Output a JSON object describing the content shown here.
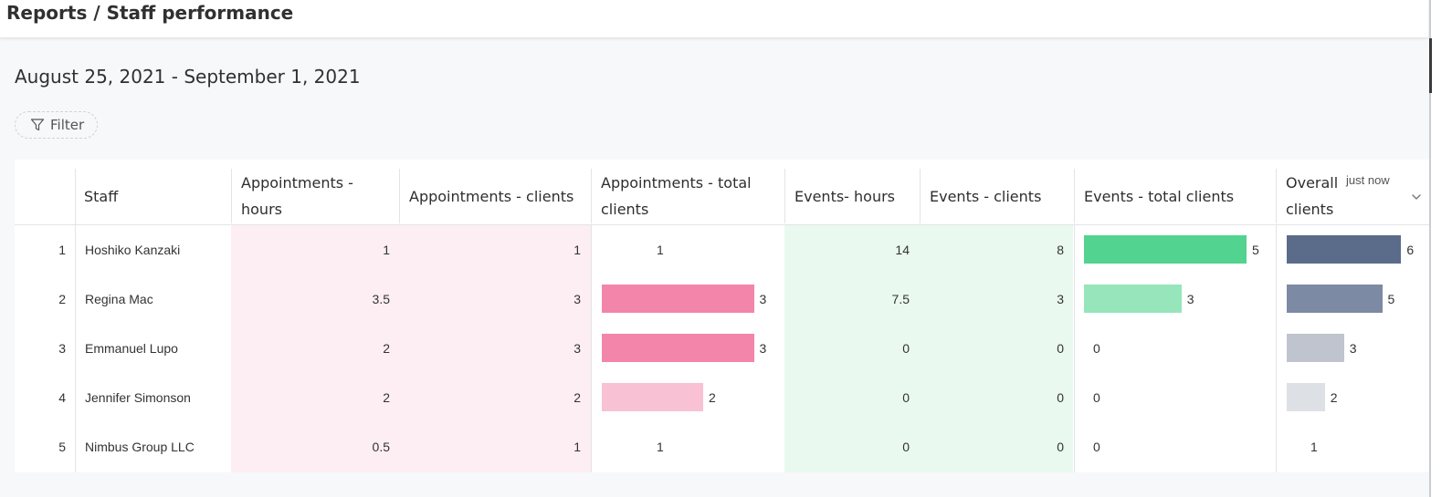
{
  "header": {
    "title": "Reports / Staff performance"
  },
  "date_range": "August 25, 2021 - September 1, 2021",
  "filter": {
    "label": "Filter"
  },
  "table": {
    "columns": {
      "staff": "Staff",
      "appt_hours": "Appointments - hours",
      "appt_clients": "Appointments - clients",
      "appt_total": "Appointments - total clients",
      "events_hours": "Events- hours",
      "events_clients": "Events - clients",
      "events_total": "Events - total clients",
      "overall": "Overall clients"
    },
    "status": "just now",
    "rows": [
      {
        "index": "1",
        "staff": "Hoshiko Kanzaki",
        "appt_hours": "1",
        "appt_clients": "1",
        "appt_total": "1",
        "events_hours": "14",
        "events_clients": "8",
        "events_total": "5",
        "overall": "6"
      },
      {
        "index": "2",
        "staff": "Regina Mac",
        "appt_hours": "3.5",
        "appt_clients": "3",
        "appt_total": "3",
        "events_hours": "7.5",
        "events_clients": "3",
        "events_total": "3",
        "overall": "5"
      },
      {
        "index": "3",
        "staff": "Emmanuel Lupo",
        "appt_hours": "2",
        "appt_clients": "3",
        "appt_total": "3",
        "events_hours": "0",
        "events_clients": "0",
        "events_total": "0",
        "overall": "3"
      },
      {
        "index": "4",
        "staff": "Jennifer Simonson",
        "appt_hours": "2",
        "appt_clients": "2",
        "appt_total": "2",
        "events_hours": "0",
        "events_clients": "0",
        "events_total": "0",
        "overall": "2"
      },
      {
        "index": "5",
        "staff": "Nimbus Group LLC",
        "appt_hours": "0.5",
        "appt_clients": "1",
        "appt_total": "1",
        "events_hours": "0",
        "events_clients": "0",
        "events_total": "0",
        "overall": "1"
      }
    ]
  },
  "colors": {
    "appt_tint": "#fdeef3",
    "events_tint": "#e9f9ef",
    "appt_bar_dark": "#f385aa",
    "appt_bar_light": "#f8c1d4",
    "events_bar_dark": "#52d38f",
    "events_bar_light": "#96e5bb",
    "overall_bar_1": "#5b6b8a",
    "overall_bar_2": "#7c8aa4",
    "overall_bar_3": "#bfc4ce",
    "overall_bar_4": "#dde0e5"
  }
}
